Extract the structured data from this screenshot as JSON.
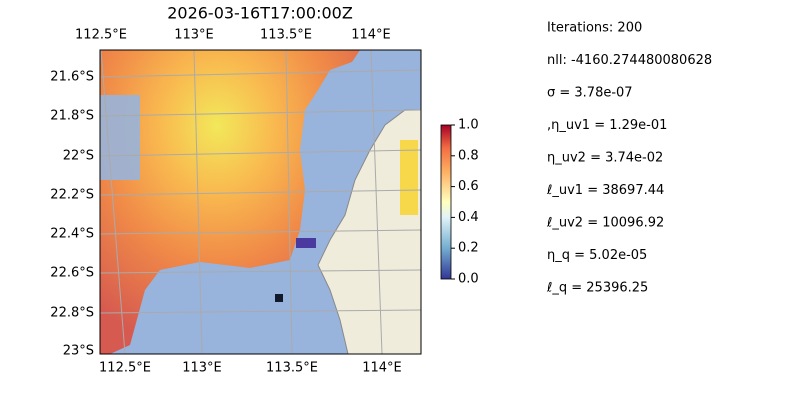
{
  "title": "2026-03-16T17:00:00Z",
  "map": {
    "top_labels": [
      "112.5°E",
      "113°E",
      "113.5°E",
      "114°E"
    ],
    "bottom_labels": [
      "112.5°E",
      "113°E",
      "113.5°E",
      "114°E"
    ],
    "left_labels": [
      "21.6°S",
      "21.8°S",
      "22°S",
      "22.2°S",
      "22.4°S",
      "22.6°S",
      "22.8°S",
      "23°S"
    ]
  },
  "colorbar": {
    "lim": [
      0,
      1
    ],
    "ticks": [
      {
        "value": 0,
        "label": "0.0"
      },
      {
        "value": 0.2,
        "label": "0.2"
      },
      {
        "value": 0.4,
        "label": "0.4"
      },
      {
        "value": 0.6,
        "label": "0.6"
      },
      {
        "value": 0.8,
        "label": "0.8"
      },
      {
        "value": 1,
        "label": "1.0"
      }
    ]
  },
  "info": [
    "Iterations: 200",
    "nll: -4160.274480080628",
    "σ = 3.78e-07",
    ",η_uv1 = 1.29e-01",
    "η_uv2 = 3.74e-02",
    "ℓ_uv1 = 38697.44",
    "ℓ_uv2 = 10096.92",
    "η_q = 5.02e-05",
    "ℓ_q = 25396.25"
  ]
}
